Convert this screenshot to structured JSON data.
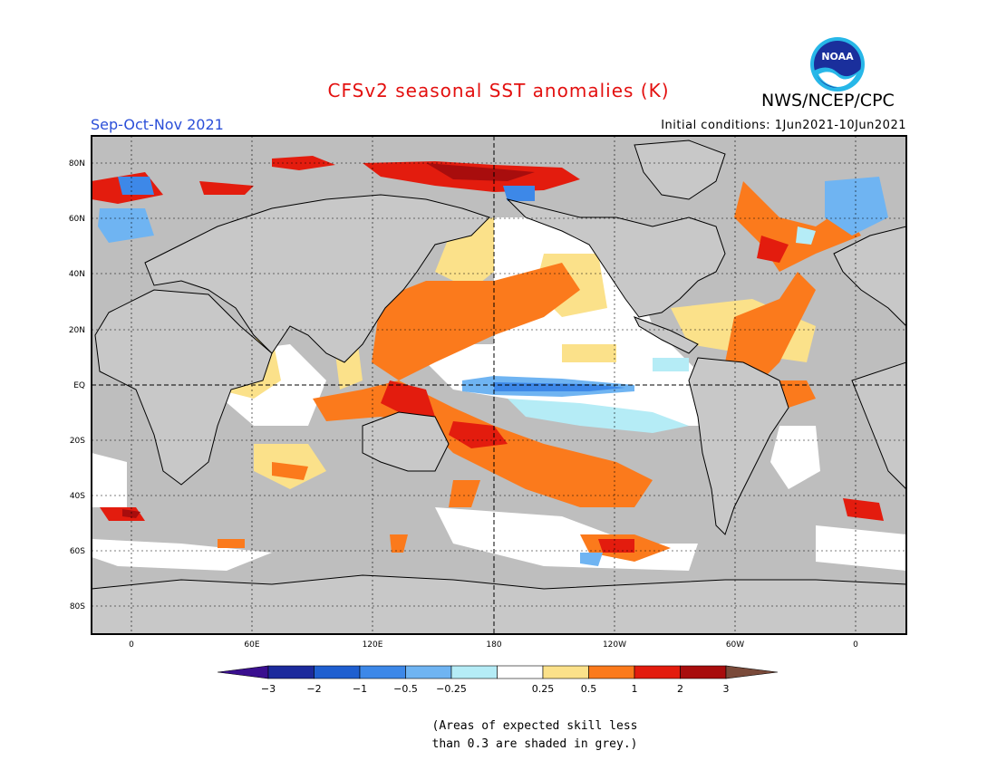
{
  "header": {
    "title": "CFSv2 seasonal SST anomalies (K)",
    "agency": "NWS/NCEP/CPC",
    "logo_text": "NOAA",
    "season": "Sep-Oct-Nov 2021",
    "initial_conditions": "Initial conditions: 1Jun2021-10Jun2021"
  },
  "colors": {
    "title": "#e3100f",
    "season": "#2b4fd8",
    "land": "#c8c8c8",
    "grey_skill": "#bebebe",
    "ocean_white": "#ffffff"
  },
  "map": {
    "lat_labels": [
      "80N",
      "60N",
      "40N",
      "20N",
      "EQ",
      "20S",
      "40S",
      "60S",
      "80S"
    ],
    "lon_labels": [
      "0",
      "60E",
      "120E",
      "180",
      "120W",
      "60W",
      "0"
    ]
  },
  "colorbar": {
    "labels": [
      "−3",
      "−2",
      "−1",
      "−0.5",
      "−0.25",
      "0.25",
      "0.5",
      "1",
      "2",
      "3"
    ],
    "colors": [
      "#1c2a9c",
      "#1f5fd0",
      "#3d88e8",
      "#6fb4f2",
      "#b5ecf6",
      "#ffffff",
      "#fbe18a",
      "#fb7a1c",
      "#e31c0e",
      "#a80d0d"
    ],
    "low_arrow_color": "#3a0f8f",
    "high_arrow_color": "#7a4a3a"
  },
  "footnote": {
    "line1": "(Areas of expected skill less",
    "line2": "than 0.3 are shaded in grey.)"
  }
}
